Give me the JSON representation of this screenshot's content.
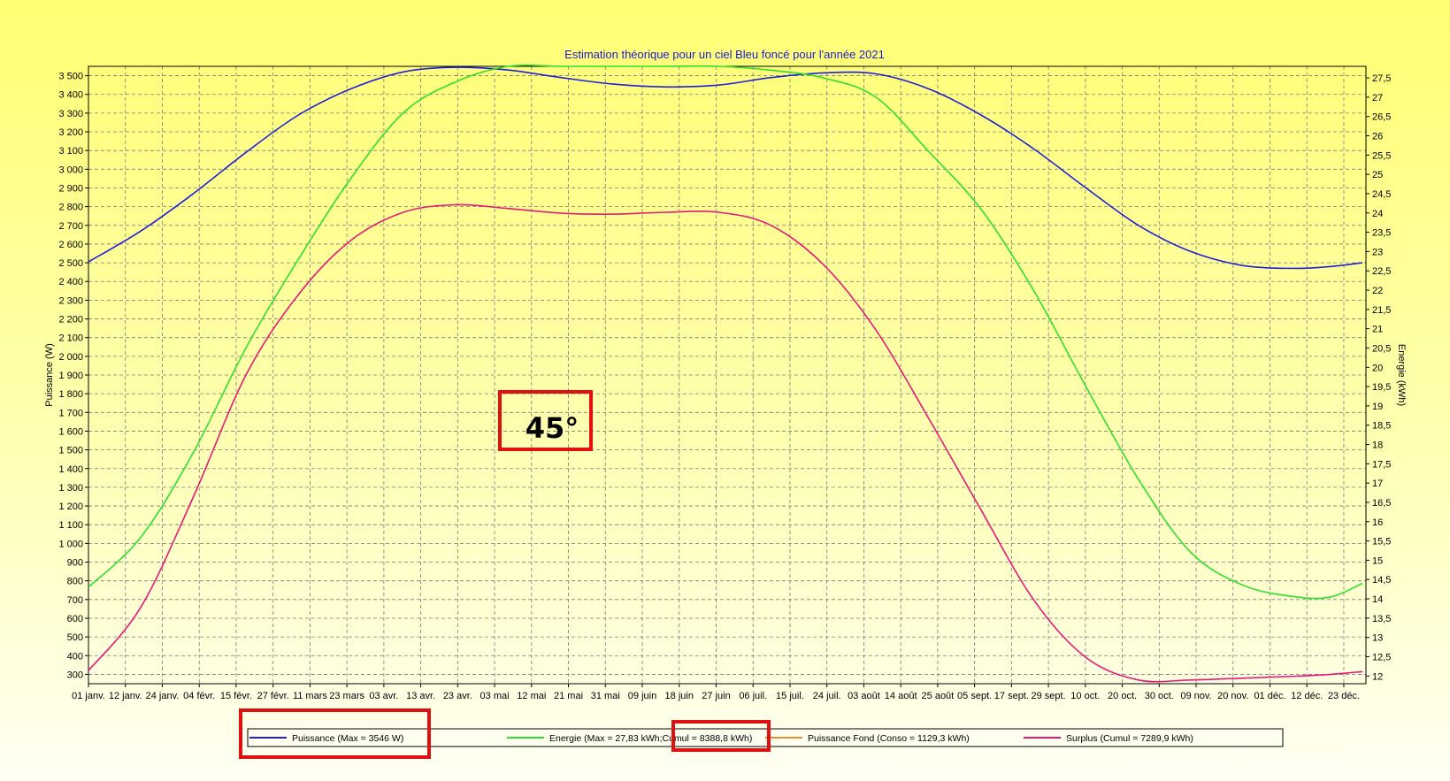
{
  "chart_data": {
    "type": "line",
    "title": "Estimation théorique pour un ciel Bleu foncé pour l'année 2021",
    "ylabel_left": "Puissance (W)",
    "ylabel_right": "Energie (kWh)",
    "ylim_left": [
      250,
      3550
    ],
    "ylim_right": [
      11.8,
      27.8
    ],
    "yticks_left": [
      "3 500",
      "3 400",
      "3 300",
      "3 200",
      "3 100",
      "3 000",
      "2 900",
      "2 800",
      "2 700",
      "2 600",
      "2 500",
      "2 400",
      "2 300",
      "2 200",
      "2 100",
      "2 000",
      "1 900",
      "1 800",
      "1 700",
      "1 600",
      "1 500",
      "1 400",
      "1 300",
      "1 200",
      "1 100",
      "1 000",
      "900",
      "800",
      "700",
      "600",
      "500",
      "400",
      "300"
    ],
    "yticks_right": [
      "27,5",
      "27",
      "26,5",
      "26",
      "25,5",
      "25",
      "24,5",
      "24",
      "23,5",
      "23",
      "22,5",
      "22",
      "21,5",
      "21",
      "20,5",
      "20",
      "19,5",
      "19",
      "18,5",
      "18",
      "17,5",
      "17",
      "16,5",
      "16",
      "15,5",
      "15",
      "14,5",
      "14",
      "13,5",
      "13",
      "12,5",
      "12"
    ],
    "xticks": [
      "01 janv.",
      "12 janv.",
      "24 janv.",
      "04 févr.",
      "15 févr.",
      "27 févr.",
      "11 mars",
      "23 mars",
      "03 avr.",
      "13 avr.",
      "23 avr.",
      "03 mai",
      "12 mai",
      "21 mai",
      "31 mai",
      "09 juin",
      "18 juin",
      "27 juin",
      "06 juil.",
      "15 juil.",
      "24 juil.",
      "03 août",
      "14 août",
      "25 août",
      "05 sept.",
      "17 sept.",
      "29 sept.",
      "10 oct.",
      "20 oct.",
      "30 oct.",
      "09 nov.",
      "20 nov.",
      "01 déc.",
      "12 déc.",
      "23 déc."
    ],
    "grid": true,
    "legend_position": "bottom",
    "series": [
      {
        "name": "Puissance (Max = 3546 W)",
        "axis": "left",
        "color": "#1f1fd6",
        "x": [
          0,
          15,
          30,
          45,
          60,
          75,
          90,
          105,
          120,
          135,
          150,
          165,
          180,
          195,
          210,
          225,
          240,
          255,
          270,
          285,
          300,
          315,
          330,
          345,
          355,
          364
        ],
        "values": [
          2505,
          2670,
          2870,
          3090,
          3290,
          3430,
          3520,
          3545,
          3530,
          3490,
          3455,
          3440,
          3450,
          3490,
          3515,
          3510,
          3430,
          3290,
          3110,
          2900,
          2700,
          2560,
          2485,
          2470,
          2480,
          2500
        ]
      },
      {
        "name": "Energie (Max = 27,83 kWh; Cumul = 8388,8 kWh)",
        "axis": "right",
        "color": "#2ee02e",
        "x": [
          0,
          15,
          30,
          45,
          60,
          75,
          90,
          105,
          120,
          135,
          150,
          165,
          180,
          195,
          210,
          225,
          240,
          255,
          270,
          285,
          300,
          315,
          330,
          345,
          355,
          364
        ],
        "values": [
          14.3,
          15.6,
          17.8,
          20.5,
          22.8,
          24.9,
          26.6,
          27.4,
          27.8,
          27.8,
          27.8,
          27.8,
          27.8,
          27.7,
          27.5,
          27.0,
          25.6,
          24.1,
          22.0,
          19.5,
          17.1,
          15.2,
          14.35,
          14.05,
          14.05,
          14.4
        ]
      },
      {
        "name": "Puissance Fond (Conso = 1129,3 kWh)",
        "axis": "left",
        "color": "#f08a30",
        "x": [],
        "values": []
      },
      {
        "name": "Surplus (Cumul = 7289,9 kWh)",
        "axis": "left",
        "color": "#e81878",
        "x": [
          0,
          15,
          30,
          45,
          60,
          75,
          90,
          105,
          120,
          135,
          150,
          165,
          180,
          195,
          210,
          225,
          240,
          255,
          270,
          285,
          300,
          315,
          330,
          345,
          355,
          364
        ],
        "values": [
          320,
          660,
          1250,
          1900,
          2330,
          2620,
          2770,
          2810,
          2790,
          2765,
          2760,
          2770,
          2770,
          2700,
          2490,
          2140,
          1670,
          1180,
          700,
          390,
          270,
          270,
          280,
          290,
          300,
          315
        ]
      }
    ],
    "annotation": "45°",
    "legend": {
      "items": [
        "Puissance (Max = 3546 W)",
        "Energie (Max = 27,83 kWh;",
        "Cumul = 8388,8 kWh)",
        "Puissance Fond (Conso = 1129,3 kWh)",
        "Surplus (Cumul = 7289,9 kWh)"
      ]
    },
    "highlight_color": "#e01010"
  }
}
